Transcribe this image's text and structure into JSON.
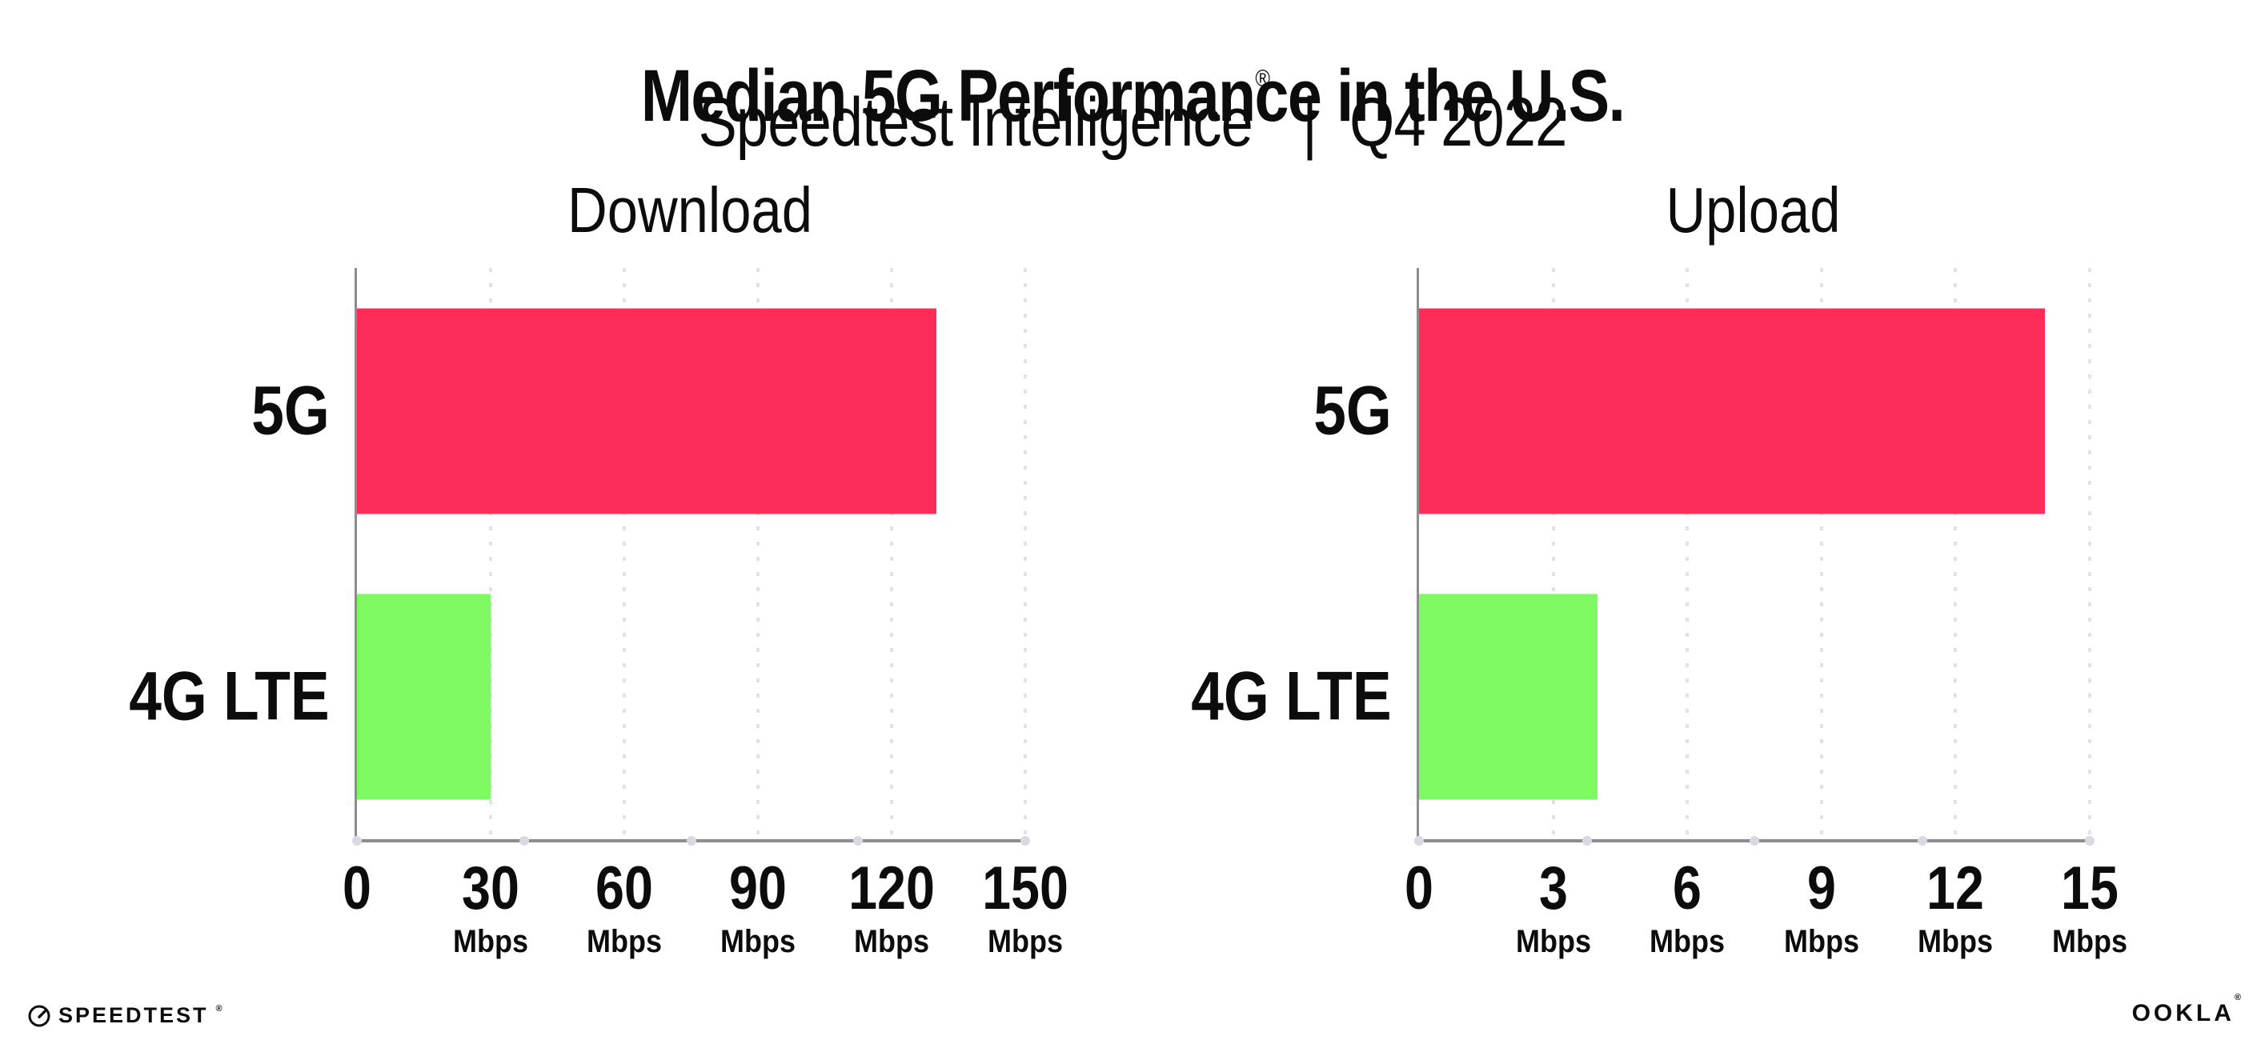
{
  "header": {
    "title": "Median 5G Performance in the U.S.",
    "subtitle_brand": "Speedtest Intelligence",
    "subtitle_mark": "®",
    "subtitle_divider": "|",
    "subtitle_period": "Q4 2022"
  },
  "chart_data": [
    {
      "type": "bar",
      "orientation": "horizontal",
      "title": "Download",
      "categories": [
        "5G",
        "4G LTE"
      ],
      "values": [
        130,
        30
      ],
      "unit": "Mbps",
      "xlim": [
        0,
        150
      ],
      "xticks": [
        0,
        30,
        60,
        90,
        120,
        150
      ],
      "tick_unit": "Mbps",
      "bar_colors": [
        "#fe2d58",
        "#7dfa62"
      ],
      "grid": "dotted vertical gridlines at ticks",
      "legend": "none"
    },
    {
      "type": "bar",
      "orientation": "horizontal",
      "title": "Upload",
      "categories": [
        "5G",
        "4G LTE"
      ],
      "values": [
        14,
        4
      ],
      "unit": "Mbps",
      "xlim": [
        0,
        15
      ],
      "xticks": [
        0,
        3,
        6,
        9,
        12,
        15
      ],
      "tick_unit": "Mbps",
      "bar_colors": [
        "#fe2d58",
        "#7dfa62"
      ],
      "grid": "dotted vertical gridlines at ticks",
      "legend": "none"
    }
  ],
  "footer": {
    "speedtest_wordmark": "SPEEDTEST",
    "speedtest_mark": "®",
    "ookla_wordmark": "OOKLA",
    "ookla_mark": "®"
  },
  "colors": {
    "bar_5g": "#fe2d58",
    "bar_4g_lte": "#7dfa62",
    "axis": "#8d8d8d",
    "gridline": "#e1e1ec",
    "axis_dot": "#d9d9e4",
    "text": "#0c0c0c",
    "background": "#ffffff"
  }
}
